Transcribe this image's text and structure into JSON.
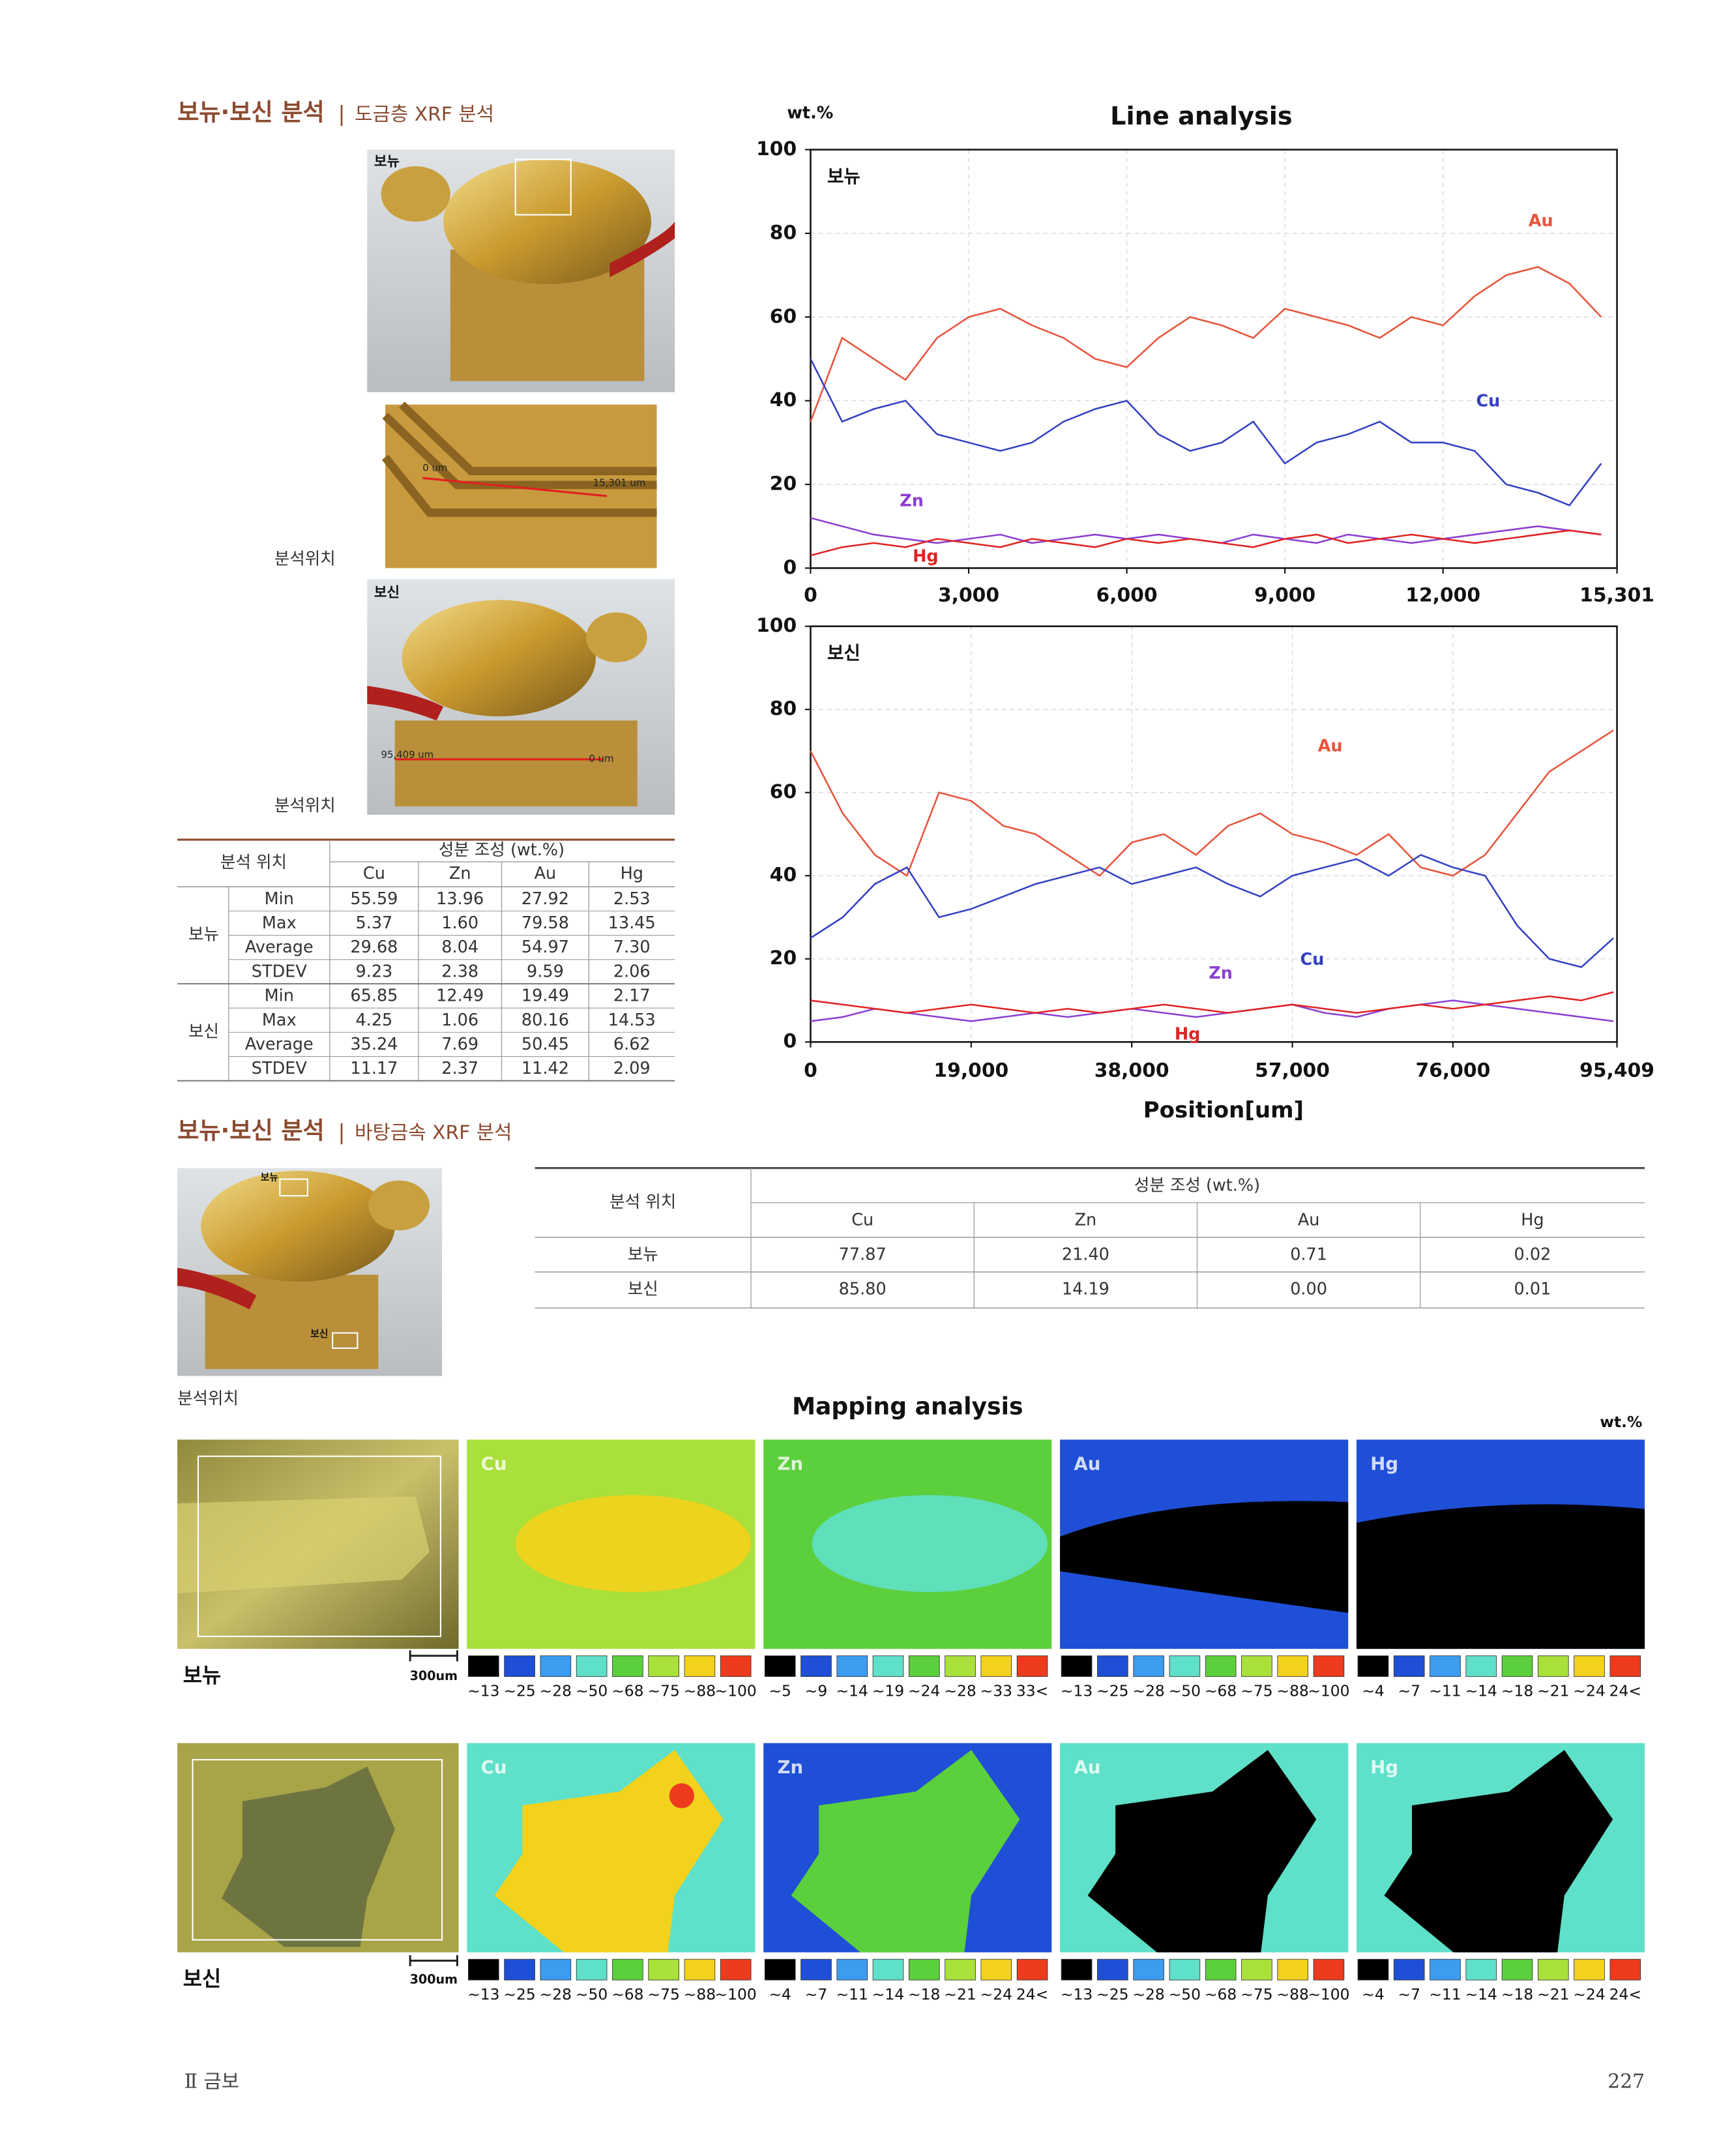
{
  "section1": {
    "title": "보뉴·보신 분석",
    "subtitle": "도금층 XRF 분석"
  },
  "photos1": {
    "bonyu_label": "보뉴",
    "bonyu_scale_start": "0 um",
    "bonyu_scale_end": "15,301 um",
    "bosin_label": "보신",
    "bosin_scale_start": "95,409 um",
    "bosin_scale_end": "0 um",
    "captions": [
      "분석위치",
      "분석위치"
    ]
  },
  "table1": {
    "header": [
      "분석 위치",
      "성분 조성 (wt.%)"
    ],
    "columns": [
      "Cu",
      "Zn",
      "Au",
      "Hg"
    ],
    "groups": [
      {
        "name": "보뉴",
        "rows": [
          [
            "Min",
            "55.59",
            "13.96",
            "27.92",
            "2.53"
          ],
          [
            "Max",
            "5.37",
            "1.60",
            "79.58",
            "13.45"
          ],
          [
            "Average",
            "29.68",
            "8.04",
            "54.97",
            "7.30"
          ],
          [
            "STDEV",
            "9.23",
            "2.38",
            "9.59",
            "2.06"
          ]
        ]
      },
      {
        "name": "보신",
        "rows": [
          [
            "Min",
            "65.85",
            "12.49",
            "19.49",
            "2.17"
          ],
          [
            "Max",
            "4.25",
            "1.06",
            "80.16",
            "14.53"
          ],
          [
            "Average",
            "35.24",
            "7.69",
            "50.45",
            "6.62"
          ],
          [
            "STDEV",
            "11.17",
            "2.37",
            "11.42",
            "2.09"
          ]
        ]
      }
    ]
  },
  "chart_data": [
    {
      "type": "line",
      "title": "Line analysis",
      "y_label": "wt.%",
      "panel_label": "보뉴",
      "grid": true,
      "x": [
        0,
        600,
        1200,
        1800,
        2400,
        3000,
        3600,
        4200,
        4800,
        5400,
        6000,
        6600,
        7200,
        7800,
        8400,
        9000,
        9600,
        10200,
        10800,
        11400,
        12000,
        12600,
        13200,
        13800,
        14400,
        15000
      ],
      "xlim": [
        0,
        15301
      ],
      "xticks": [
        0,
        {
          "value": 3000,
          "label": "3,000"
        },
        {
          "value": 6000,
          "label": "6,000"
        },
        {
          "value": 9000,
          "label": "9,000"
        },
        {
          "value": 12000,
          "label": "12,000"
        },
        {
          "value": 15301,
          "label": "15,301"
        }
      ],
      "ylim": [
        0,
        100
      ],
      "yticks": [
        0,
        20,
        40,
        60,
        80,
        100
      ],
      "series": [
        {
          "name": "Au",
          "color": "#e8543c",
          "values": [
            35,
            55,
            50,
            45,
            55,
            60,
            62,
            58,
            55,
            50,
            48,
            55,
            60,
            58,
            55,
            62,
            60,
            58,
            55,
            60,
            58,
            65,
            70,
            72,
            68,
            60
          ]
        },
        {
          "name": "Cu",
          "color": "#3441c2",
          "values": [
            50,
            35,
            38,
            40,
            32,
            30,
            28,
            30,
            35,
            38,
            40,
            32,
            28,
            30,
            35,
            25,
            30,
            32,
            35,
            30,
            30,
            28,
            20,
            18,
            15,
            25
          ]
        },
        {
          "name": "Zn",
          "color": "#8b3fd2",
          "values": [
            12,
            10,
            8,
            7,
            6,
            7,
            8,
            6,
            7,
            8,
            7,
            8,
            7,
            6,
            8,
            7,
            6,
            8,
            7,
            6,
            7,
            8,
            9,
            10,
            9,
            8
          ]
        },
        {
          "name": "Hg",
          "color": "#e02424",
          "values": [
            3,
            5,
            6,
            5,
            7,
            6,
            5,
            7,
            6,
            5,
            7,
            6,
            7,
            6,
            5,
            7,
            8,
            6,
            7,
            8,
            7,
            6,
            7,
            8,
            9,
            8
          ]
        }
      ]
    },
    {
      "type": "line",
      "x_label": "Position[um]",
      "panel_label": "보신",
      "grid": true,
      "x": [
        0,
        3800,
        7600,
        11400,
        15200,
        19000,
        22800,
        26600,
        30400,
        34200,
        38000,
        41800,
        45600,
        49400,
        53200,
        57000,
        60800,
        64600,
        68400,
        72200,
        76000,
        79800,
        83600,
        87400,
        91200,
        95000
      ],
      "xlim": [
        0,
        95409
      ],
      "xticks": [
        0,
        {
          "value": 19000,
          "label": "19,000"
        },
        {
          "value": 38000,
          "label": "38,000"
        },
        {
          "value": 57000,
          "label": "57,000"
        },
        {
          "value": 76000,
          "label": "76,000"
        },
        {
          "value": 95409,
          "label": "95,409"
        }
      ],
      "ylim": [
        0,
        100
      ],
      "yticks": [
        0,
        20,
        40,
        60,
        80,
        100
      ],
      "series": [
        {
          "name": "Au",
          "color": "#e8543c",
          "values": [
            70,
            55,
            45,
            40,
            60,
            58,
            52,
            50,
            45,
            40,
            48,
            50,
            45,
            52,
            55,
            50,
            48,
            45,
            50,
            42,
            40,
            45,
            55,
            65,
            70,
            75
          ]
        },
        {
          "name": "Cu",
          "color": "#3441c2",
          "values": [
            25,
            30,
            38,
            42,
            30,
            32,
            35,
            38,
            40,
            42,
            38,
            40,
            42,
            38,
            35,
            40,
            42,
            44,
            40,
            45,
            42,
            40,
            28,
            20,
            18,
            25
          ]
        },
        {
          "name": "Zn",
          "color": "#8b3fd2",
          "values": [
            5,
            6,
            8,
            7,
            6,
            5,
            6,
            7,
            6,
            7,
            8,
            7,
            6,
            7,
            8,
            9,
            7,
            6,
            8,
            9,
            10,
            9,
            8,
            7,
            6,
            5
          ]
        },
        {
          "name": "Hg",
          "color": "#e02424",
          "values": [
            10,
            9,
            8,
            7,
            8,
            9,
            8,
            7,
            8,
            7,
            8,
            9,
            8,
            7,
            8,
            9,
            8,
            7,
            8,
            9,
            8,
            9,
            10,
            11,
            10,
            12
          ]
        }
      ]
    }
  ],
  "section2": {
    "title": "보뉴·보신 분석",
    "subtitle": "바탕금속 XRF 분석"
  },
  "photo2": {
    "bonyu_label": "보뉴",
    "bosin_label": "보신",
    "caption": "분석위치"
  },
  "table2": {
    "header": [
      "분석 위치",
      "성분 조성 (wt.%)"
    ],
    "columns": [
      "Cu",
      "Zn",
      "Au",
      "Hg"
    ],
    "rows": [
      [
        "보뉴",
        "77.87",
        "21.40",
        "0.71",
        "0.02"
      ],
      [
        "보신",
        "85.80",
        "14.19",
        "0.00",
        "0.01"
      ]
    ]
  },
  "mapping": {
    "title": "Mapping analysis",
    "unit": "wt.%",
    "legend_colors": [
      "#000000",
      "#1f4fd6",
      "#3b9cf0",
      "#5fe0c8",
      "#5ccf3c",
      "#a9e03a",
      "#f2d21c",
      "#ee3b1e"
    ],
    "rows": [
      {
        "name": "보뉴",
        "scale": "300um",
        "panels": [
          {
            "element": "Cu",
            "labels": [
              "~13",
              "~25",
              "~28",
              "~50",
              "~68",
              "~75",
              "~88",
              "~100"
            ]
          },
          {
            "element": "Zn",
            "labels": [
              "~5",
              "~9",
              "~14",
              "~19",
              "~24",
              "~28",
              "~33",
              "33<"
            ]
          },
          {
            "element": "Au",
            "labels": [
              "~13",
              "~25",
              "~28",
              "~50",
              "~68",
              "~75",
              "~88",
              "~100"
            ]
          },
          {
            "element": "Hg",
            "labels": [
              "~4",
              "~7",
              "~11",
              "~14",
              "~18",
              "~21",
              "~24",
              "24<"
            ]
          }
        ]
      },
      {
        "name": "보신",
        "scale": "300um",
        "panels": [
          {
            "element": "Cu",
            "labels": [
              "~13",
              "~25",
              "~28",
              "~50",
              "~68",
              "~75",
              "~88",
              "~100"
            ]
          },
          {
            "element": "Zn",
            "labels": [
              "~4",
              "~7",
              "~11",
              "~14",
              "~18",
              "~21",
              "~24",
              "24<"
            ]
          },
          {
            "element": "Au",
            "labels": [
              "~13",
              "~25",
              "~28",
              "~50",
              "~68",
              "~75",
              "~88",
              "~100"
            ]
          },
          {
            "element": "Hg",
            "labels": [
              "~4",
              "~7",
              "~11",
              "~14",
              "~18",
              "~21",
              "~24",
              "24<"
            ]
          }
        ]
      }
    ]
  },
  "footer": {
    "chapter": "Ⅱ 금보",
    "page": "227"
  }
}
